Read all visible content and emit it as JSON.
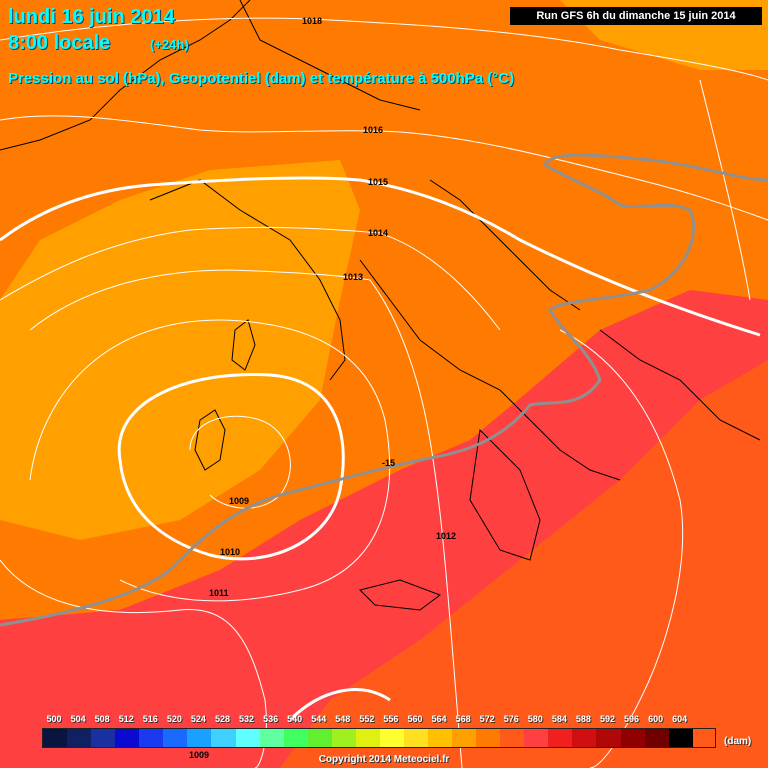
{
  "header": {
    "date": "lundi 16 juin 2014",
    "time": "8:00 locale",
    "offset": "(+24h)",
    "subtitle": "Pression au sol (hPa), Geopotentiel (dam) et température à 500hPa (°C)",
    "run": "Run GFS 6h du dimanche 15 juin 2014"
  },
  "isobar_labels": [
    "1018",
    "1016",
    "1015",
    "1014",
    "1013",
    "1009",
    "1010",
    "1011",
    "1012",
    "1009"
  ],
  "temperature_label": "-15",
  "legend": {
    "values": [
      "500",
      "504",
      "508",
      "512",
      "516",
      "520",
      "524",
      "528",
      "532",
      "536",
      "540",
      "544",
      "548",
      "552",
      "556",
      "560",
      "564",
      "568",
      "572",
      "576",
      "580",
      "584",
      "588",
      "592",
      "596",
      "600",
      "604"
    ],
    "colors": [
      "#0a1440",
      "#102060",
      "#1a2fa0",
      "#0a0ad0",
      "#1a3af0",
      "#1a6aff",
      "#1aa0ff",
      "#40d0ff",
      "#60ffff",
      "#60ffa0",
      "#40ff60",
      "#60f030",
      "#a0f020",
      "#e0f010",
      "#ffff30",
      "#ffe020",
      "#ffc000",
      "#ffa000",
      "#ff7a00",
      "#ff5a1a",
      "#ff4040",
      "#f02020",
      "#d01010",
      "#b00808",
      "#900000",
      "#700000",
      "#000000"
    ],
    "unit": "(dam)"
  },
  "copyright": "Copyright 2014 Meteociel.fr"
}
